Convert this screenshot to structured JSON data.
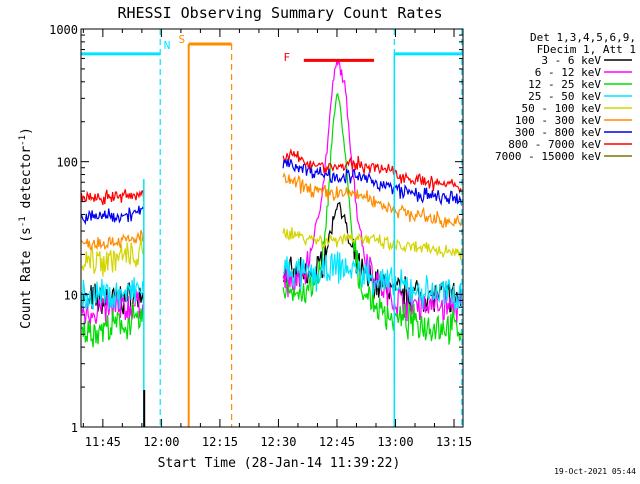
{
  "chart_data": {
    "type": "line",
    "title": "RHESSI Observing Summary Count Rates",
    "xlabel": "Start Time (28-Jan-14 11:39:22)",
    "ylabel_prefix": "Count Rate (s",
    "ylabel_sup1": "-1",
    "ylabel_mid": " detector",
    "ylabel_sup2": "-1",
    "ylabel_suffix": ")",
    "yscale": "log",
    "ylim": [
      1,
      1000
    ],
    "xlim_minutes": [
      699.4,
      797.3
    ],
    "x_ticks": [
      {
        "label": "11:45",
        "value": 705
      },
      {
        "label": "12:00",
        "value": 720
      },
      {
        "label": "12:15",
        "value": 735
      },
      {
        "label": "12:30",
        "value": 750
      },
      {
        "label": "12:45",
        "value": 765
      },
      {
        "label": "13:00",
        "value": 780
      },
      {
        "label": "13:15",
        "value": 795
      }
    ],
    "y_ticks": [
      {
        "label": "1",
        "value": 1
      },
      {
        "label": "10",
        "value": 10
      },
      {
        "label": "100",
        "value": 100
      },
      {
        "label": "1000",
        "value": 1000
      }
    ],
    "legend": {
      "header": [
        "Det 1,3,4,5,6,9,",
        "FDecim 1, Att 1"
      ],
      "placement": "right"
    },
    "series": [
      {
        "name": "3 - 6 keV",
        "color": "#000000",
        "segments": [
          {
            "x": [
              699.5,
              711,
              715.5
            ],
            "y": [
              9,
              9.2,
              9.5
            ]
          },
          {
            "x": [
              751.2,
              757,
              760,
              762,
              764,
              765,
              766,
              767,
              768,
              770,
              772,
              780,
              786,
              797
            ],
            "y": [
              14,
              13.5,
              15,
              20,
              35,
              50,
              46,
              36,
              25,
              17,
              13.5,
              10.5,
              10,
              9.5
            ]
          }
        ]
      },
      {
        "name": "6 - 12 keV",
        "color": "#ff00ff",
        "segments": [
          {
            "x": [
              699.5,
              711,
              715.5
            ],
            "y": [
              7.5,
              7.8,
              8.5
            ]
          },
          {
            "x": [
              751.2,
              755,
              757,
              760,
              762,
              763,
              764,
              765,
              766,
              767,
              768,
              769,
              770,
              772,
              776,
              780,
              786,
              797
            ],
            "y": [
              12.5,
              12,
              15,
              35,
              90,
              190,
              380,
              560,
              500,
              360,
              190,
              90,
              45,
              20,
              12,
              9,
              8.5,
              8
            ]
          }
        ]
      },
      {
        "name": "12 - 25 keV",
        "color": "#00dd00",
        "segments": [
          {
            "x": [
              699.5,
              711,
              715.5
            ],
            "y": [
              5,
              6,
              6.5
            ]
          },
          {
            "x": [
              751.2,
              756,
              759,
              761,
              762,
              763,
              764,
              765,
              766,
              767,
              768,
              769,
              771,
              775,
              780,
              786,
              797
            ],
            "y": [
              11.5,
              10,
              11,
              15,
              28,
              70,
              200,
              320,
              240,
              120,
              55,
              25,
              12,
              8,
              6.5,
              6,
              5.5
            ]
          }
        ]
      },
      {
        "name": "25 - 50 keV",
        "color": "#00e5ff",
        "segments": [
          {
            "x": [
              699.5,
              711,
              715.5
            ],
            "y": [
              9.5,
              10,
              11
            ]
          },
          {
            "x": [
              751.2,
              757,
              760,
              763,
              765,
              767,
              770,
              775,
              780,
              786,
              797
            ],
            "y": [
              15,
              14,
              14,
              15,
              16,
              16,
              15,
              13,
              11.5,
              10.5,
              10
            ]
          }
        ]
      },
      {
        "name": "50 - 100 keV",
        "color": "#d4d400",
        "segments": [
          {
            "x": [
              699.5,
              711,
              715.5
            ],
            "y": [
              18,
              19,
              20
            ]
          },
          {
            "x": [
              751.2,
              757,
              762,
              765,
              767,
              770,
              775,
              780,
              786,
              797
            ],
            "y": [
              30,
              27,
              25,
              26,
              27,
              27,
              25,
              23,
              22,
              21
            ]
          }
        ]
      },
      {
        "name": "100 - 300 keV",
        "color": "#ff8c00",
        "segments": [
          {
            "x": [
              699.5,
              711,
              715.5
            ],
            "y": [
              24,
              25.5,
              27
            ]
          },
          {
            "x": [
              751.2,
              757,
              762,
              765,
              770,
              775,
              780,
              786,
              797
            ],
            "y": [
              75,
              64,
              58,
              58,
              57,
              50,
              43,
              39,
              34
            ]
          }
        ]
      },
      {
        "name": "300 - 800 keV",
        "color": "#0000ee",
        "segments": [
          {
            "x": [
              699.5,
              711,
              715.5
            ],
            "y": [
              38,
              40,
              42
            ]
          },
          {
            "x": [
              751.2,
              757,
              762,
              765,
              770,
              775,
              780,
              786,
              797
            ],
            "y": [
              100,
              88,
              80,
              78,
              77,
              70,
              62,
              56,
              51
            ]
          }
        ]
      },
      {
        "name": "800 - 7000 keV",
        "color": "#ff0000",
        "segments": [
          {
            "x": [
              699.5,
              711,
              715.5
            ],
            "y": [
              53,
              55,
              57
            ]
          },
          {
            "x": [
              751.2,
              757,
              762,
              765,
              770,
              775,
              780,
              786,
              797
            ],
            "y": [
              115,
              100,
              92,
              91,
              96,
              90,
              82,
              72,
              63
            ]
          }
        ]
      },
      {
        "name": "7000 - 15000 keV",
        "color": "#777700",
        "segments": []
      }
    ],
    "annotations": [
      {
        "label": "N",
        "color": "#00e5ff",
        "type": "night",
        "ranges": [
          [
            699.4,
            719.7
          ],
          [
            779.7,
            797.3
          ]
        ],
        "bar_y": 650,
        "label_x": 720.6
      },
      {
        "label": "S",
        "color": "#ff8c00",
        "type": "saa",
        "ranges": [
          [
            727,
            738
          ]
        ],
        "bar_y": 770,
        "label_x": 724.4
      },
      {
        "label": "F",
        "color": "#ff0000",
        "type": "flare",
        "ranges": [
          [
            756.5,
            774.5
          ]
        ],
        "bar_y": 580,
        "label_x": 751.3
      }
    ],
    "night_edges": [
      719.7,
      779.7,
      797.0
    ],
    "saa_edges": [
      727,
      738
    ],
    "data_gap": [
      715.5,
      751.2
    ]
  },
  "footer": {
    "timestamp": "19-Oct-2021 05:44"
  }
}
